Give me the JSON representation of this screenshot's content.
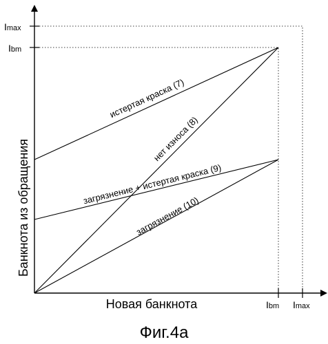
{
  "figure_caption": "Фиг.4a",
  "axes": {
    "x_label": "Новая банкнота",
    "y_label": "Банкнота из обращения",
    "x_ticks": [
      {
        "main": "I",
        "sub": "bm"
      },
      {
        "main": "I",
        "sub": "max"
      }
    ],
    "y_ticks": [
      {
        "main": "I",
        "sub": "max"
      },
      {
        "main": "I",
        "sub": "bm"
      }
    ]
  },
  "lines": [
    {
      "label": "истертая краска (7)"
    },
    {
      "label": "нет износа (8)"
    },
    {
      "label": "загрязнение + истертая краска (9)"
    },
    {
      "label": "загрязнение (10)"
    }
  ]
}
